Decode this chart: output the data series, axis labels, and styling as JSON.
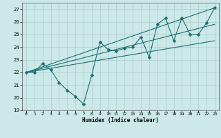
{
  "xlabel": "Humidex (Indice chaleur)",
  "bg_color": "#cce8e8",
  "grid_color": "#aacccc",
  "line_color": "#1a6e6e",
  "xlim": [
    -0.5,
    23.5
  ],
  "ylim": [
    19,
    27.5
  ],
  "yticks": [
    19,
    20,
    21,
    22,
    23,
    24,
    25,
    26,
    27
  ],
  "xticks": [
    0,
    1,
    2,
    3,
    4,
    5,
    6,
    7,
    8,
    9,
    10,
    11,
    12,
    13,
    14,
    15,
    16,
    17,
    18,
    19,
    20,
    21,
    22,
    23
  ],
  "line1_x": [
    0,
    1,
    2,
    3,
    4,
    5,
    6,
    7,
    8,
    9,
    10,
    11,
    12,
    13,
    14,
    15,
    16,
    17,
    18,
    19,
    20,
    21,
    22,
    23
  ],
  "line1_y": [
    22,
    22,
    22.7,
    22.2,
    21.2,
    20.6,
    20.1,
    19.5,
    21.8,
    24.4,
    23.8,
    23.7,
    23.9,
    24.0,
    24.8,
    23.2,
    25.8,
    26.3,
    24.5,
    26.3,
    25.0,
    25.0,
    25.9,
    27.1
  ],
  "line2_x": [
    0,
    23
  ],
  "line2_y": [
    22,
    27.1
  ],
  "line3_x": [
    0,
    23
  ],
  "line3_y": [
    22,
    24.5
  ],
  "line4_x": [
    0,
    23
  ],
  "line4_y": [
    22,
    25.8
  ],
  "marker_size": 2.5,
  "line_width": 0.8
}
